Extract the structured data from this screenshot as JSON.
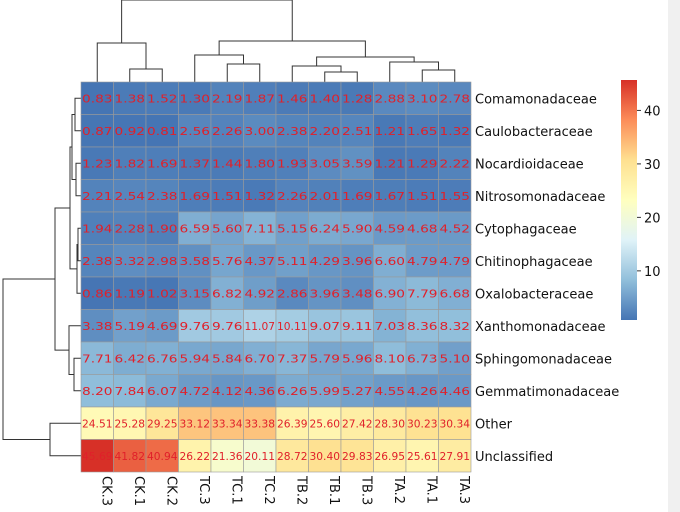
{
  "chart_data": {
    "type": "heatmap",
    "title": "",
    "columns": [
      "CK.3",
      "CK.1",
      "CK.2",
      "TC.3",
      "TC.1",
      "TC.2",
      "TB.2",
      "TB.1",
      "TB.3",
      "TA.2",
      "TA.1",
      "TA.3"
    ],
    "rows": [
      "Comamonadaceae",
      "Caulobacteraceae",
      "Nocardioidaceae",
      "Nitrosomonadaceae",
      "Cytophagaceae",
      "Chitinophagaceae",
      "Oxalobacteraceae",
      "Xanthomonadaceae",
      "Sphingomonadaceae",
      "Gemmatimonadaceae",
      "Other",
      "Unclassified"
    ],
    "values": [
      [
        0.83,
        1.38,
        1.52,
        1.3,
        2.19,
        1.87,
        1.46,
        1.4,
        1.28,
        2.88,
        3.1,
        2.78
      ],
      [
        0.87,
        0.92,
        0.81,
        2.56,
        2.26,
        3.0,
        2.38,
        2.2,
        2.51,
        1.21,
        1.65,
        1.32
      ],
      [
        1.23,
        1.82,
        1.69,
        1.37,
        1.44,
        1.8,
        1.93,
        3.05,
        3.59,
        1.21,
        1.29,
        2.22
      ],
      [
        2.21,
        2.54,
        2.38,
        1.69,
        1.51,
        1.32,
        2.26,
        2.01,
        1.69,
        1.67,
        1.51,
        1.55
      ],
      [
        1.94,
        2.28,
        1.9,
        6.59,
        5.6,
        7.11,
        5.15,
        6.24,
        5.9,
        4.59,
        4.68,
        4.52
      ],
      [
        2.38,
        3.32,
        2.98,
        3.58,
        5.76,
        4.37,
        5.11,
        4.29,
        3.96,
        6.6,
        4.79,
        4.79
      ],
      [
        0.86,
        1.19,
        1.02,
        3.15,
        6.82,
        4.92,
        2.86,
        3.96,
        3.48,
        6.9,
        7.79,
        6.68
      ],
      [
        3.38,
        5.19,
        4.69,
        9.76,
        9.76,
        11.07,
        10.11,
        9.07,
        9.11,
        7.03,
        8.36,
        8.32
      ],
      [
        7.71,
        6.42,
        6.76,
        5.94,
        5.84,
        6.7,
        7.37,
        5.79,
        5.96,
        8.1,
        6.73,
        5.1
      ],
      [
        8.2,
        7.84,
        6.07,
        4.72,
        4.12,
        4.36,
        6.26,
        5.99,
        5.27,
        4.55,
        4.26,
        4.46
      ],
      [
        24.51,
        25.28,
        29.25,
        33.12,
        33.34,
        33.38,
        26.39,
        25.6,
        27.42,
        28.3,
        30.23,
        30.34
      ],
      [
        45.69,
        41.82,
        40.94,
        26.22,
        21.36,
        20.11,
        28.72,
        30.4,
        29.83,
        26.95,
        25.61,
        27.91
      ]
    ],
    "colorbar": {
      "min": 0.81,
      "max": 45.69,
      "ticks": [
        10,
        20,
        30,
        40
      ]
    },
    "palette": [
      "#4575b4",
      "#91bfdb",
      "#e0f3f8",
      "#ffffbf",
      "#fee090",
      "#fc8d59",
      "#d73027"
    ],
    "label_color": "#e0202a"
  }
}
